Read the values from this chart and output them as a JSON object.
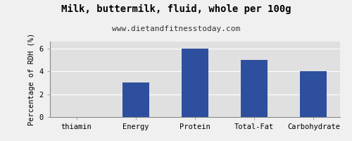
{
  "title": "Milk, buttermilk, fluid, whole per 100g",
  "subtitle": "www.dietandfitnesstoday.com",
  "categories": [
    "thiamin",
    "Energy",
    "Protein",
    "Total-Fat",
    "Carbohydrate"
  ],
  "values": [
    0,
    3,
    6,
    5,
    4
  ],
  "bar_color": "#2e4f9e",
  "ylabel": "Percentage of RDH (%)",
  "ylim": [
    0,
    6.6
  ],
  "yticks": [
    0,
    2,
    4,
    6
  ],
  "figure_background": "#f0f0f0",
  "plot_background": "#e0e0e0",
  "title_fontsize": 10,
  "subtitle_fontsize": 8,
  "tick_fontsize": 7.5,
  "ylabel_fontsize": 7.5,
  "bar_width": 0.45
}
